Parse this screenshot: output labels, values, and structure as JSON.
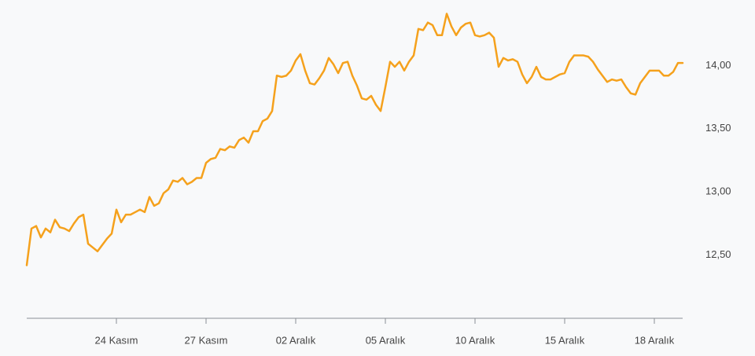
{
  "chart_data": {
    "type": "line",
    "categories": [
      null,
      null,
      null,
      null,
      null,
      null,
      null,
      null,
      null,
      null,
      null,
      null,
      null,
      null,
      null,
      null,
      null,
      null,
      null,
      "24 Kasım",
      null,
      null,
      null,
      null,
      null,
      null,
      null,
      null,
      null,
      null,
      null,
      null,
      null,
      null,
      null,
      null,
      null,
      null,
      "27 Kasım",
      null,
      null,
      null,
      null,
      null,
      null,
      null,
      null,
      null,
      null,
      null,
      null,
      null,
      null,
      null,
      null,
      null,
      null,
      "02 Aralık",
      null,
      null,
      null,
      null,
      null,
      null,
      null,
      null,
      null,
      null,
      null,
      null,
      null,
      null,
      null,
      null,
      null,
      null,
      "05 Aralık",
      null,
      null,
      null,
      null,
      null,
      null,
      null,
      null,
      null,
      null,
      null,
      null,
      null,
      null,
      null,
      null,
      null,
      null,
      "10 Aralık",
      null,
      null,
      null,
      null,
      null,
      null,
      null,
      null,
      null,
      null,
      null,
      null,
      null,
      null,
      null,
      null,
      null,
      null,
      "15 Aralık",
      null,
      null,
      null,
      null,
      null,
      null,
      null,
      null,
      null,
      null,
      null,
      null,
      null,
      null,
      null,
      null,
      null,
      null,
      "18 Aralık",
      null,
      null,
      null,
      null,
      null,
      null
    ],
    "values": [
      12.42,
      12.71,
      12.73,
      12.64,
      12.71,
      12.68,
      12.78,
      12.72,
      12.71,
      12.69,
      12.75,
      12.8,
      12.82,
      12.59,
      12.56,
      12.53,
      12.58,
      12.63,
      12.67,
      12.86,
      12.76,
      12.82,
      12.82,
      12.84,
      12.86,
      12.84,
      12.96,
      12.89,
      12.91,
      12.99,
      13.02,
      13.09,
      13.08,
      13.11,
      13.06,
      13.08,
      13.11,
      13.11,
      13.23,
      13.26,
      13.27,
      13.34,
      13.33,
      13.36,
      13.35,
      13.41,
      13.43,
      13.39,
      13.48,
      13.48,
      13.56,
      13.58,
      13.64,
      13.92,
      13.91,
      13.92,
      13.96,
      14.04,
      14.09,
      13.96,
      13.86,
      13.85,
      13.9,
      13.96,
      14.06,
      14.01,
      13.94,
      14.02,
      14.03,
      13.92,
      13.84,
      13.74,
      13.73,
      13.76,
      13.69,
      13.64,
      13.83,
      14.03,
      13.99,
      14.03,
      13.96,
      14.03,
      14.08,
      14.29,
      14.28,
      14.34,
      14.32,
      14.24,
      14.24,
      14.41,
      14.31,
      14.24,
      14.3,
      14.33,
      14.34,
      14.24,
      14.23,
      14.24,
      14.26,
      14.22,
      13.99,
      14.06,
      14.04,
      14.05,
      14.03,
      13.93,
      13.86,
      13.91,
      13.99,
      13.91,
      13.89,
      13.89,
      13.91,
      13.93,
      13.94,
      14.03,
      14.08,
      14.08,
      14.08,
      14.07,
      14.03,
      13.97,
      13.92,
      13.87,
      13.89,
      13.88,
      13.89,
      13.83,
      13.78,
      13.77,
      13.86,
      13.91,
      13.96,
      13.96,
      13.96,
      13.92,
      13.92,
      13.95,
      14.02,
      14.02
    ],
    "color": "#f5a11c",
    "ylim": [
      12.0,
      14.5
    ],
    "yticks": [
      {
        "value": 12.5,
        "label": "12,50"
      },
      {
        "value": 13,
        "label": "13,00"
      },
      {
        "value": 13.5,
        "label": "13,50"
      },
      {
        "value": 14,
        "label": "14,00"
      }
    ],
    "grid": false
  }
}
